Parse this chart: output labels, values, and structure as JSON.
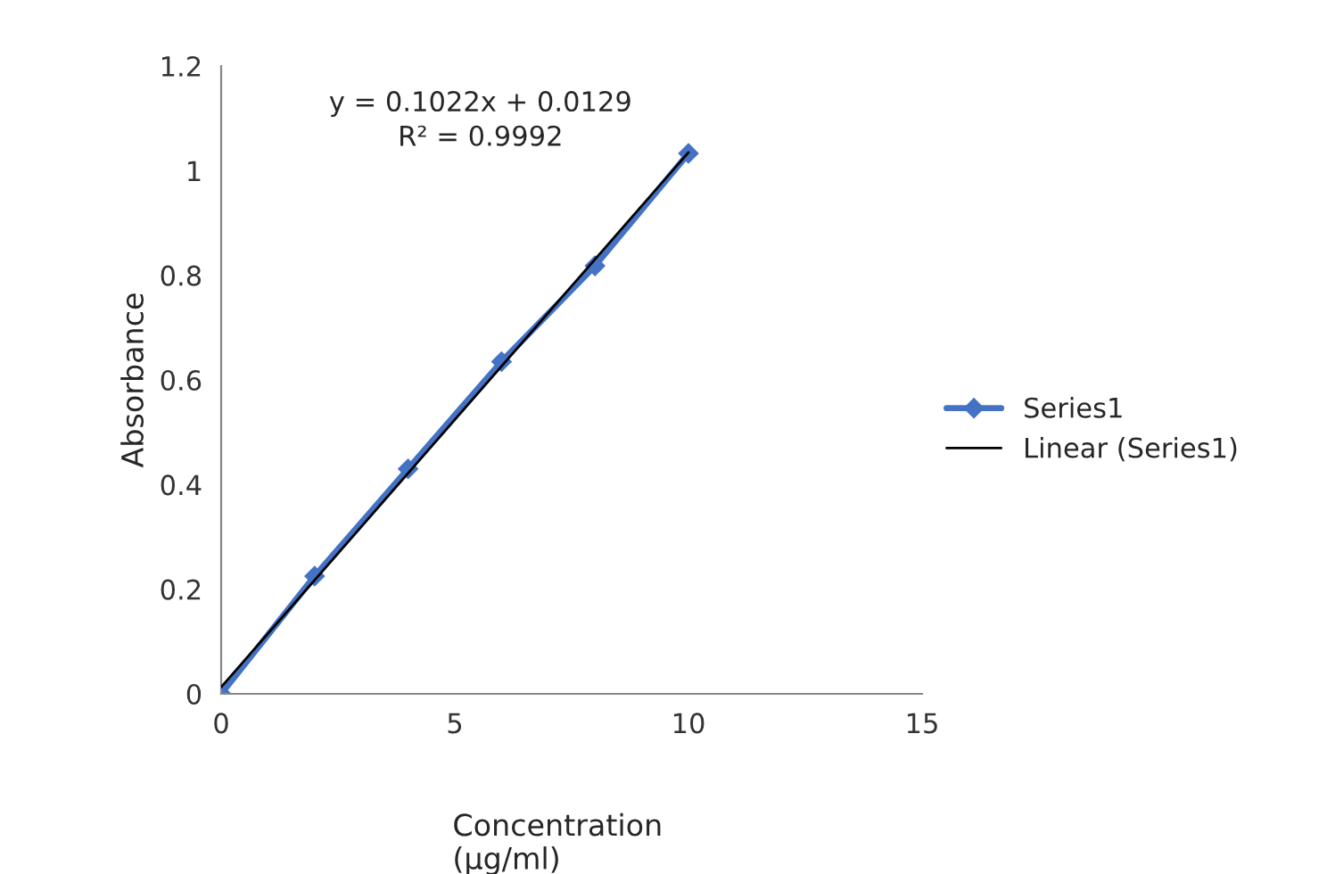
{
  "chart_data": {
    "type": "line",
    "xlabel": "Concentration\n(µg/ml)",
    "ylabel": "Absorbance",
    "annotations": [
      "y = 0.1022x + 0.0129",
      "R² = 0.9992"
    ],
    "series": [
      {
        "name": "Series1",
        "color": "#4472c4",
        "x": [
          0,
          2,
          4,
          6,
          8,
          10
        ],
        "values": [
          0,
          0.225,
          0.43,
          0.635,
          0.818,
          1.033
        ],
        "marker": "diamond"
      },
      {
        "name": "Linear (Series1)",
        "color": "#000000",
        "type": "line",
        "x": [
          0,
          10
        ],
        "values": [
          0.0129,
          1.0349
        ],
        "marker": "none"
      }
    ],
    "xlim": [
      0,
      15
    ],
    "xticks": [
      0,
      5,
      10,
      15
    ],
    "ylim": [
      0,
      1.2
    ],
    "yticks": [
      0,
      0.2,
      0.4,
      0.6,
      0.8,
      1,
      1.2
    ],
    "grid": false,
    "legend": "right",
    "line_style": "solid"
  }
}
